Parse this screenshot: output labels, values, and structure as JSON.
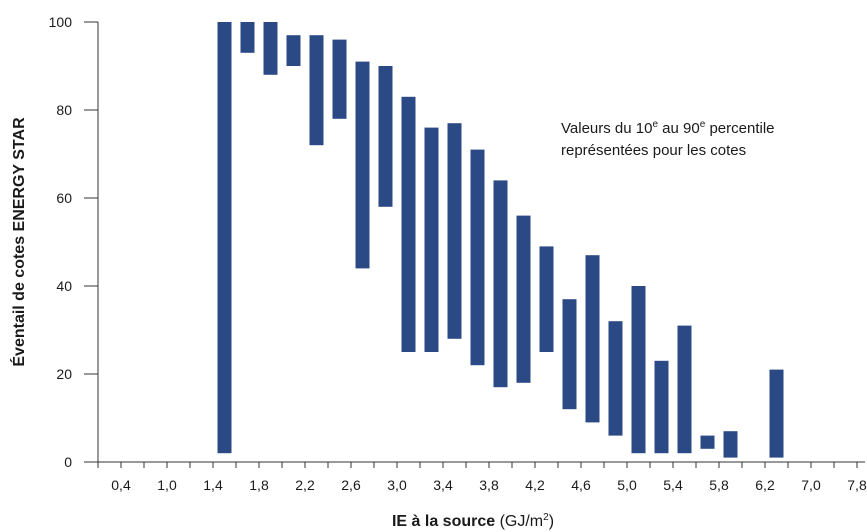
{
  "chart_data": {
    "type": "bar",
    "title": "",
    "ylabel": "Éventail de cotes ENERGY STAR",
    "xlabel": {
      "bold": "IE à la source",
      "unit_prefix": " (GJ/m",
      "unit_sup": "2",
      "unit_suffix": ")"
    },
    "annotation": {
      "line1": {
        "a": "Valeurs du 10",
        "sup1": "e",
        "b": " au 90",
        "sup2": "e",
        "c": " percentile"
      },
      "line2": "représentées pour les cotes"
    },
    "ylim": [
      0,
      100
    ],
    "yticks": [
      0,
      20,
      40,
      60,
      80,
      100
    ],
    "x_tick_labels": [
      "0,4",
      "1,0",
      "1,4",
      "1,8",
      "2,2",
      "2,6",
      "3,0",
      "3,4",
      "3,8",
      "4,2",
      "4,6",
      "5,0",
      "5,4",
      "5,8",
      "6,2",
      "7,0",
      "7,8"
    ],
    "bar_color": "#2b4a85",
    "series": [
      {
        "values": [
          {
            "x": "1,4",
            "low": 2,
            "high": 100
          },
          {
            "x": "1,6",
            "low": 93,
            "high": 100
          },
          {
            "x": "1,8",
            "low": 88,
            "high": 100
          },
          {
            "x": "2,0",
            "low": 90,
            "high": 97
          },
          {
            "x": "2,2",
            "low": 72,
            "high": 97
          },
          {
            "x": "2,4",
            "low": 78,
            "high": 96
          },
          {
            "x": "2,6",
            "low": 44,
            "high": 91
          },
          {
            "x": "2,8",
            "low": 58,
            "high": 90
          },
          {
            "x": "3,0",
            "low": 25,
            "high": 83
          },
          {
            "x": "3,2",
            "low": 25,
            "high": 76
          },
          {
            "x": "3,4",
            "low": 28,
            "high": 77
          },
          {
            "x": "3,6",
            "low": 22,
            "high": 71
          },
          {
            "x": "3,8",
            "low": 17,
            "high": 64
          },
          {
            "x": "4,0",
            "low": 18,
            "high": 56
          },
          {
            "x": "4,2",
            "low": 25,
            "high": 49
          },
          {
            "x": "4,4",
            "low": 12,
            "high": 37
          },
          {
            "x": "4,6",
            "low": 9,
            "high": 47
          },
          {
            "x": "4,8",
            "low": 6,
            "high": 32
          },
          {
            "x": "5,0",
            "low": 2,
            "high": 40
          },
          {
            "x": "5,2",
            "low": 2,
            "high": 23
          },
          {
            "x": "5,4",
            "low": 2,
            "high": 31
          },
          {
            "x": "5,6",
            "low": 3,
            "high": 6
          },
          {
            "x": "5,8",
            "low": 1,
            "high": 7
          },
          {
            "x": "6,2",
            "low": 1,
            "high": 21
          }
        ]
      }
    ]
  }
}
